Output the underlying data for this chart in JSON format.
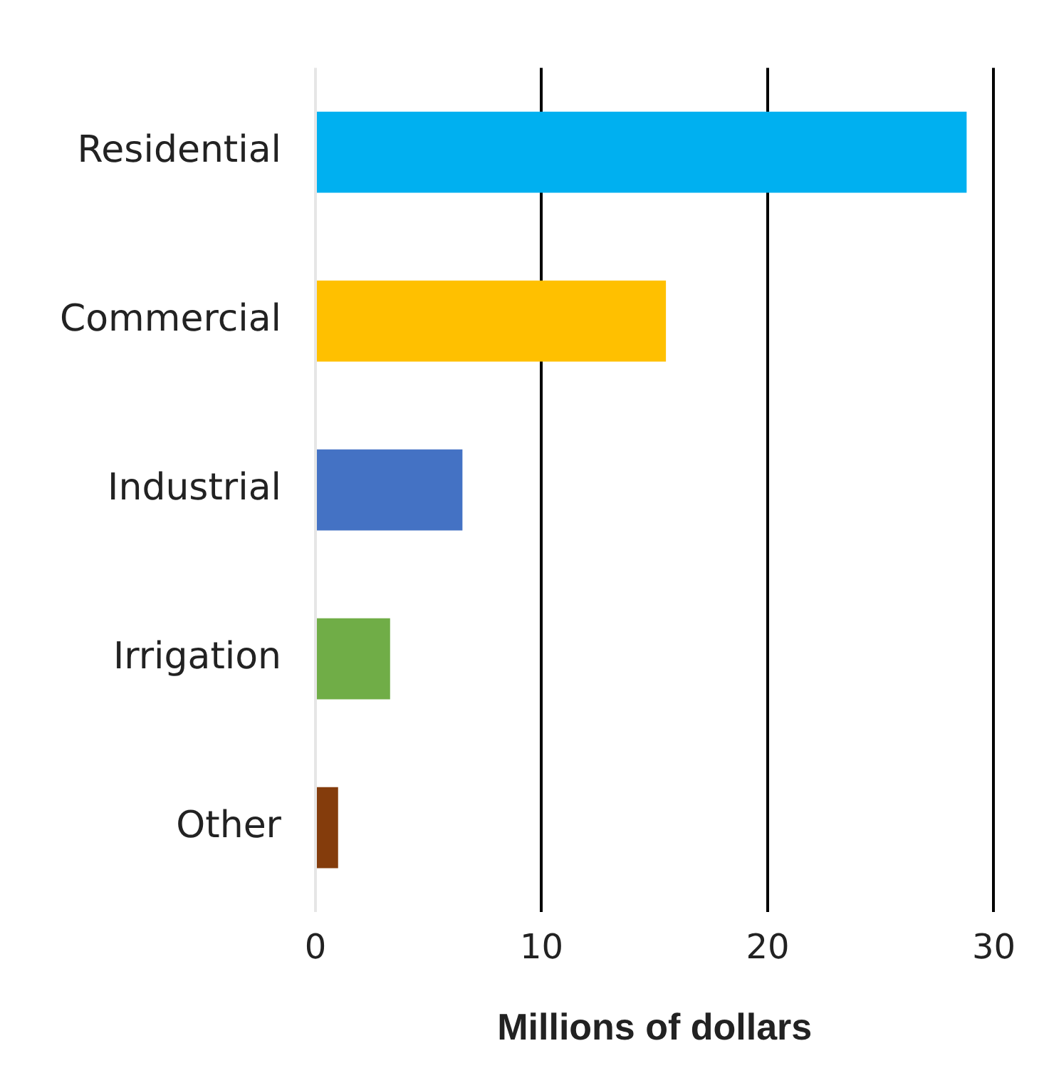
{
  "chart_data": {
    "type": "bar",
    "orientation": "horizontal",
    "xlabel": "Millions of dollars",
    "categories": [
      "Residential",
      "Commercial",
      "Industrial",
      "Irrigation",
      "Other"
    ],
    "values": [
      28.8,
      15.5,
      6.5,
      3.3,
      1.0
    ],
    "colors": [
      "#00b0f0",
      "#ffc000",
      "#4472c4",
      "#70ad47",
      "#843c0c"
    ],
    "xlim": [
      0,
      30
    ],
    "xticks": [
      0,
      10,
      20,
      30
    ],
    "grid": "x"
  }
}
